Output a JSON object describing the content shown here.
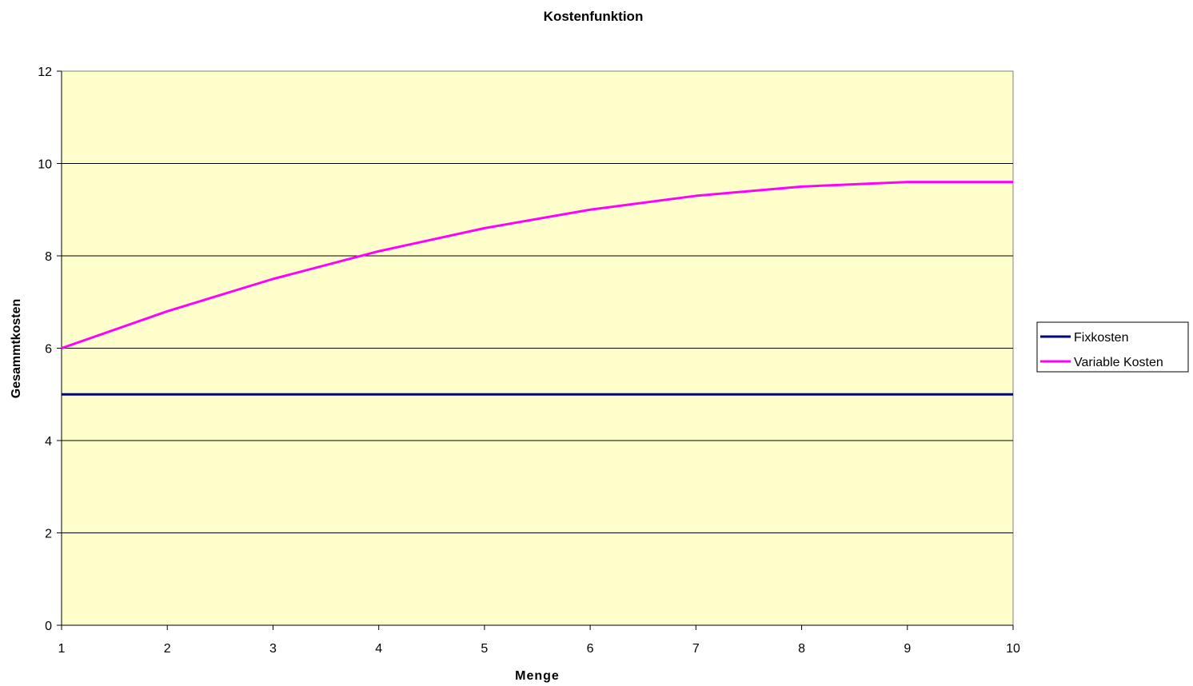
{
  "chart_data": {
    "type": "line",
    "title": "Kostenfunktion",
    "xlabel": "Menge",
    "ylabel": "Gesammtkosten",
    "x": [
      1,
      2,
      3,
      4,
      5,
      6,
      7,
      8,
      9,
      10
    ],
    "xlim": [
      1,
      10
    ],
    "ylim": [
      0,
      12
    ],
    "y_ticks": [
      0,
      2,
      4,
      6,
      8,
      10,
      12
    ],
    "grid": true,
    "legend_position": "right",
    "plot_background": "#ffffcc",
    "series": [
      {
        "name": "Fixkosten",
        "color": "#000080",
        "values": [
          5,
          5,
          5,
          5,
          5,
          5,
          5,
          5,
          5,
          5
        ]
      },
      {
        "name": "Variable Kosten",
        "color": "#ff00ff",
        "values": [
          6,
          6.8,
          7.5,
          8.1,
          8.6,
          9.0,
          9.3,
          9.5,
          9.6,
          9.6
        ]
      }
    ]
  }
}
